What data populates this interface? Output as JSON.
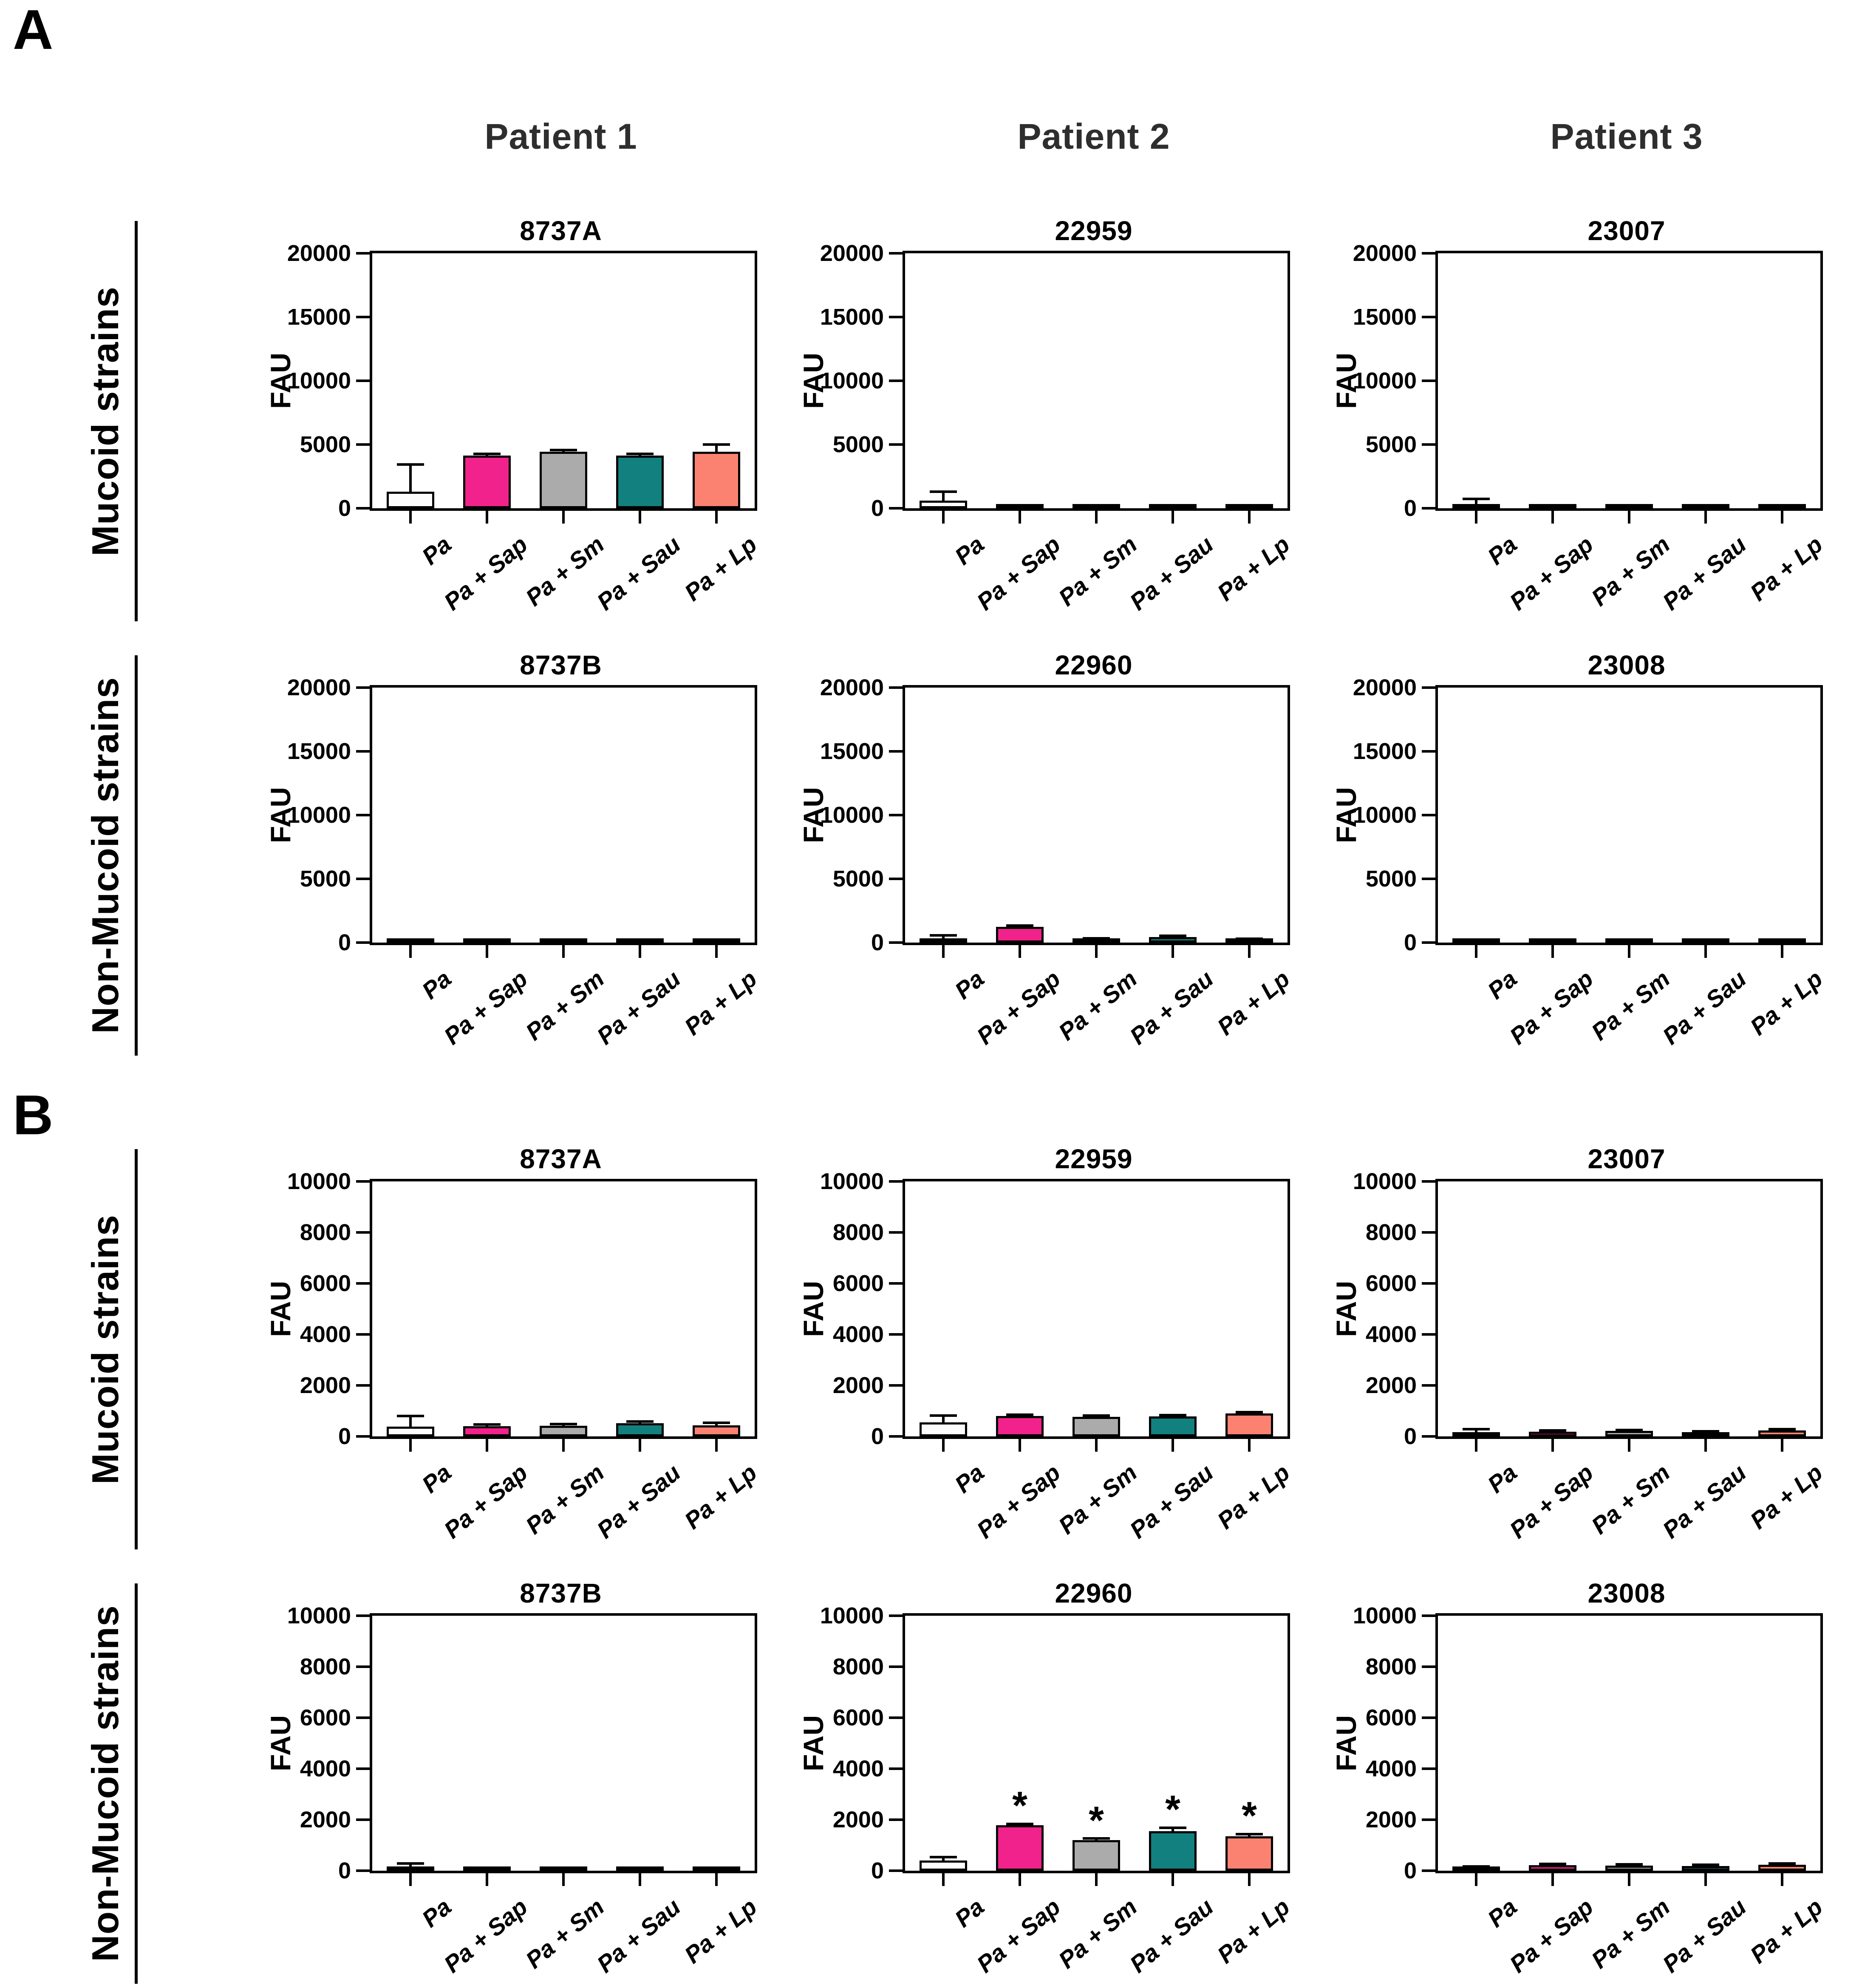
{
  "style": {
    "bar_colors": [
      "#FDFDFD",
      "#F2228C",
      "#ABABAB",
      "#12807E",
      "#FB8271"
    ],
    "bar_border_color": "#000000",
    "header_color": "#2e2e2e",
    "text_color": "#000000",
    "sig_marker": "*"
  },
  "categories": [
    "Pa",
    "Pa + Sap",
    "Pa + Sm",
    "Pa + Sau",
    "Pa + Lp"
  ],
  "panels": [
    {
      "label": "A",
      "column_headers": [
        "Patient 1",
        "Patient 2",
        "Patient 3"
      ],
      "rows": [
        {
          "row_label": "Mucoid strains"
        },
        {
          "row_label": "Non-Mucoid strains"
        }
      ]
    },
    {
      "label": "B",
      "column_headers": [],
      "rows": [
        {
          "row_label": "Mucoid strains"
        },
        {
          "row_label": "Non-Mucoid strains"
        }
      ]
    }
  ],
  "chart_data": [
    {
      "id": "a-mucoid-p1",
      "type": "bar",
      "panel": "A",
      "row_label": "Mucoid strains",
      "patient": "Patient 1",
      "title": "8737A",
      "ylabel": "FAU",
      "ylim": [
        0,
        20000
      ],
      "yticks": [
        0,
        5000,
        10000,
        15000,
        20000
      ],
      "categories": [
        "Pa",
        "Pa + Sap",
        "Pa + Sm",
        "Pa + Sau",
        "Pa + Lp"
      ],
      "values": [
        1300,
        4150,
        4450,
        4150,
        4450
      ],
      "errors": [
        2150,
        120,
        130,
        120,
        550
      ],
      "sig": [
        0,
        0,
        0,
        0,
        0
      ]
    },
    {
      "id": "a-mucoid-p2",
      "type": "bar",
      "panel": "A",
      "row_label": "Mucoid strains",
      "patient": "Patient 2",
      "title": "22959",
      "ylabel": "FAU",
      "ylim": [
        0,
        20000
      ],
      "yticks": [
        0,
        5000,
        10000,
        15000,
        20000
      ],
      "categories": [
        "Pa",
        "Pa + Sap",
        "Pa + Sm",
        "Pa + Sau",
        "Pa + Lp"
      ],
      "values": [
        600,
        180,
        60,
        120,
        80
      ],
      "errors": [
        700,
        60,
        40,
        50,
        40
      ],
      "sig": [
        0,
        0,
        0,
        0,
        0
      ]
    },
    {
      "id": "a-mucoid-p3",
      "type": "bar",
      "panel": "A",
      "row_label": "Mucoid strains",
      "patient": "Patient 3",
      "title": "23007",
      "ylabel": "FAU",
      "ylim": [
        0,
        20000
      ],
      "yticks": [
        0,
        5000,
        10000,
        15000,
        20000
      ],
      "categories": [
        "Pa",
        "Pa + Sap",
        "Pa + Sm",
        "Pa + Sau",
        "Pa + Lp"
      ],
      "values": [
        350,
        60,
        90,
        70,
        130
      ],
      "errors": [
        380,
        40,
        40,
        40,
        60
      ],
      "sig": [
        0,
        0,
        0,
        0,
        0
      ]
    },
    {
      "id": "a-nonmucoid-p1",
      "type": "bar",
      "panel": "A",
      "row_label": "Non-Mucoid strains",
      "patient": "Patient 1",
      "title": "8737B",
      "ylabel": "FAU",
      "ylim": [
        0,
        20000
      ],
      "yticks": [
        0,
        5000,
        10000,
        15000,
        20000
      ],
      "categories": [
        "Pa",
        "Pa + Sap",
        "Pa + Sm",
        "Pa + Sau",
        "Pa + Lp"
      ],
      "values": [
        110,
        100,
        100,
        110,
        90
      ],
      "errors": [
        50,
        40,
        40,
        40,
        40
      ],
      "sig": [
        0,
        0,
        0,
        0,
        0
      ]
    },
    {
      "id": "a-nonmucoid-p2",
      "type": "bar",
      "panel": "A",
      "row_label": "Non-Mucoid strains",
      "patient": "Patient 2",
      "title": "22960",
      "ylabel": "FAU",
      "ylim": [
        0,
        20000
      ],
      "yticks": [
        0,
        5000,
        10000,
        15000,
        20000
      ],
      "categories": [
        "Pa",
        "Pa + Sap",
        "Pa + Sm",
        "Pa + Sau",
        "Pa + Lp"
      ],
      "values": [
        300,
        1250,
        280,
        450,
        230
      ],
      "errors": [
        260,
        70,
        70,
        80,
        60
      ],
      "sig": [
        0,
        0,
        0,
        0,
        0
      ]
    },
    {
      "id": "a-nonmucoid-p3",
      "type": "bar",
      "panel": "A",
      "row_label": "Non-Mucoid strains",
      "patient": "Patient 3",
      "title": "23008",
      "ylabel": "FAU",
      "ylim": [
        0,
        20000
      ],
      "yticks": [
        0,
        5000,
        10000,
        15000,
        20000
      ],
      "categories": [
        "Pa",
        "Pa + Sap",
        "Pa + Sm",
        "Pa + Sau",
        "Pa + Lp"
      ],
      "values": [
        150,
        120,
        140,
        100,
        90
      ],
      "errors": [
        60,
        50,
        50,
        40,
        40
      ],
      "sig": [
        0,
        0,
        0,
        0,
        0
      ]
    },
    {
      "id": "b-mucoid-p1",
      "type": "bar",
      "panel": "B",
      "row_label": "Mucoid strains",
      "patient": "Patient 1",
      "title": "8737A",
      "ylabel": "FAU",
      "ylim": [
        0,
        10000
      ],
      "yticks": [
        0,
        2000,
        4000,
        6000,
        8000,
        10000
      ],
      "categories": [
        "Pa",
        "Pa + Sap",
        "Pa + Sm",
        "Pa + Sau",
        "Pa + Lp"
      ],
      "values": [
        380,
        400,
        420,
        520,
        440
      ],
      "errors": [
        420,
        60,
        60,
        70,
        90
      ],
      "sig": [
        0,
        0,
        0,
        0,
        0
      ]
    },
    {
      "id": "b-mucoid-p2",
      "type": "bar",
      "panel": "B",
      "row_label": "Mucoid strains",
      "patient": "Patient 2",
      "title": "22959",
      "ylabel": "FAU",
      "ylim": [
        0,
        10000
      ],
      "yticks": [
        0,
        2000,
        4000,
        6000,
        8000,
        10000
      ],
      "categories": [
        "Pa",
        "Pa + Sap",
        "Pa + Sm",
        "Pa + Sau",
        "Pa + Lp"
      ],
      "values": [
        550,
        800,
        770,
        780,
        900
      ],
      "errors": [
        260,
        50,
        50,
        50,
        50
      ],
      "sig": [
        0,
        0,
        0,
        0,
        0
      ]
    },
    {
      "id": "b-mucoid-p3",
      "type": "bar",
      "panel": "B",
      "row_label": "Mucoid strains",
      "patient": "Patient 3",
      "title": "23007",
      "ylabel": "FAU",
      "ylim": [
        0,
        10000
      ],
      "yticks": [
        0,
        2000,
        4000,
        6000,
        8000,
        10000
      ],
      "categories": [
        "Pa",
        "Pa + Sap",
        "Pa + Sm",
        "Pa + Sau",
        "Pa + Lp"
      ],
      "values": [
        120,
        190,
        210,
        160,
        230
      ],
      "errors": [
        160,
        50,
        40,
        40,
        50
      ],
      "sig": [
        0,
        0,
        0,
        0,
        0
      ]
    },
    {
      "id": "b-nonmucoid-p1",
      "type": "bar",
      "panel": "B",
      "row_label": "Non-Mucoid strains",
      "patient": "Patient 1",
      "title": "8737B",
      "ylabel": "FAU",
      "ylim": [
        0,
        10000
      ],
      "yticks": [
        0,
        2000,
        4000,
        6000,
        8000,
        10000
      ],
      "categories": [
        "Pa",
        "Pa + Sap",
        "Pa + Sm",
        "Pa + Sau",
        "Pa + Lp"
      ],
      "values": [
        130,
        40,
        50,
        50,
        40
      ],
      "errors": [
        160,
        25,
        25,
        25,
        25
      ],
      "sig": [
        0,
        0,
        0,
        0,
        0
      ]
    },
    {
      "id": "b-nonmucoid-p2",
      "type": "bar",
      "panel": "B",
      "row_label": "Non-Mucoid strains",
      "patient": "Patient 2",
      "title": "22960",
      "ylabel": "FAU",
      "ylim": [
        0,
        10000
      ],
      "yticks": [
        0,
        2000,
        4000,
        6000,
        8000,
        10000
      ],
      "categories": [
        "Pa",
        "Pa + Sap",
        "Pa + Sm",
        "Pa + Sau",
        "Pa + Lp"
      ],
      "values": [
        400,
        1780,
        1200,
        1550,
        1350
      ],
      "errors": [
        130,
        60,
        60,
        140,
        90
      ],
      "sig": [
        0,
        1,
        1,
        1,
        1
      ]
    },
    {
      "id": "b-nonmucoid-p3",
      "type": "bar",
      "panel": "B",
      "row_label": "Non-Mucoid strains",
      "patient": "Patient 3",
      "title": "23008",
      "ylabel": "FAU",
      "ylim": [
        0,
        10000
      ],
      "yticks": [
        0,
        2000,
        4000,
        6000,
        8000,
        10000
      ],
      "categories": [
        "Pa",
        "Pa + Sap",
        "Pa + Sm",
        "Pa + Sau",
        "Pa + Lp"
      ],
      "values": [
        80,
        220,
        200,
        190,
        240
      ],
      "errors": [
        90,
        50,
        50,
        40,
        50
      ],
      "sig": [
        0,
        0,
        0,
        0,
        0
      ]
    }
  ]
}
